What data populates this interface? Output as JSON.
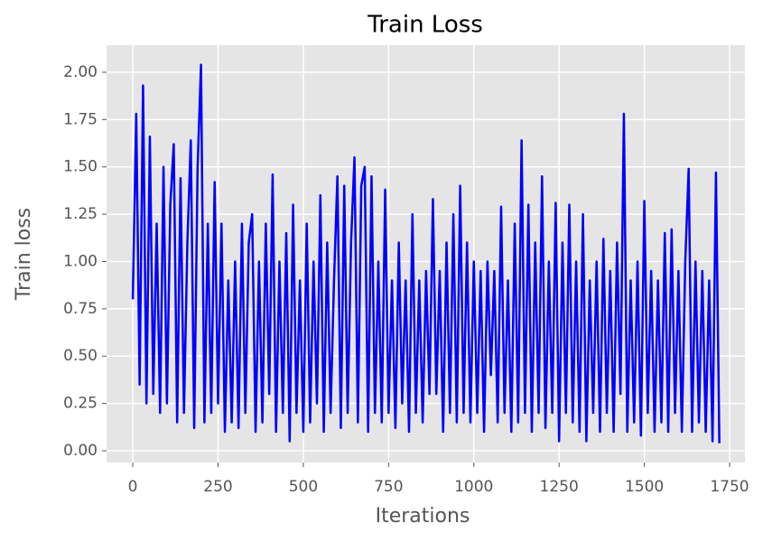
{
  "chart_data": {
    "type": "line",
    "title": "Train Loss",
    "x_label": "Iterations",
    "y_label": "Train loss",
    "color": "#0000ff",
    "grid": true,
    "xlim": [
      -77,
      1795
    ],
    "ylim": [
      -0.062,
      2.143
    ],
    "xticks": [
      0,
      250,
      500,
      750,
      1000,
      1250,
      1500,
      1750
    ],
    "yticks": [
      {
        "value": 0,
        "label": "0.00"
      },
      {
        "value": 0.25,
        "label": "0.25"
      },
      {
        "value": 0.5,
        "label": "0.50"
      },
      {
        "value": 0.75,
        "label": "0.75"
      },
      {
        "value": 1,
        "label": "1.00"
      },
      {
        "value": 1.25,
        "label": "1.25"
      },
      {
        "value": 1.5,
        "label": "1.50"
      },
      {
        "value": 1.75,
        "label": "1.75"
      },
      {
        "value": 2,
        "label": "2.00"
      }
    ],
    "x": [
      0,
      10,
      20,
      30,
      40,
      50,
      60,
      70,
      80,
      90,
      100,
      110,
      120,
      130,
      140,
      150,
      160,
      170,
      180,
      190,
      200,
      210,
      220,
      230,
      240,
      250,
      260,
      270,
      280,
      290,
      300,
      310,
      320,
      330,
      340,
      350,
      360,
      370,
      380,
      390,
      400,
      410,
      420,
      430,
      440,
      450,
      460,
      470,
      480,
      490,
      500,
      510,
      520,
      530,
      540,
      550,
      560,
      570,
      580,
      590,
      600,
      610,
      620,
      630,
      640,
      650,
      660,
      670,
      680,
      690,
      700,
      710,
      720,
      730,
      740,
      750,
      760,
      770,
      780,
      790,
      800,
      810,
      820,
      830,
      840,
      850,
      860,
      870,
      880,
      890,
      900,
      910,
      920,
      930,
      940,
      950,
      960,
      970,
      980,
      990,
      1000,
      1010,
      1020,
      1030,
      1040,
      1050,
      1060,
      1070,
      1080,
      1090,
      1100,
      1110,
      1120,
      1130,
      1140,
      1150,
      1160,
      1170,
      1180,
      1190,
      1200,
      1210,
      1220,
      1230,
      1240,
      1250,
      1260,
      1270,
      1280,
      1290,
      1300,
      1310,
      1320,
      1330,
      1340,
      1350,
      1360,
      1370,
      1380,
      1390,
      1400,
      1410,
      1420,
      1430,
      1440,
      1450,
      1460,
      1470,
      1480,
      1490,
      1500,
      1510,
      1520,
      1530,
      1540,
      1550,
      1560,
      1570,
      1580,
      1590,
      1600,
      1610,
      1620,
      1630,
      1640,
      1650,
      1660,
      1670,
      1680,
      1690,
      1700,
      1710,
      1720
    ],
    "values": [
      0.8,
      1.78,
      0.35,
      1.93,
      0.25,
      1.66,
      0.3,
      1.2,
      0.2,
      1.5,
      0.25,
      1.3,
      1.62,
      0.15,
      1.44,
      0.2,
      1.1,
      1.64,
      0.12,
      1.5,
      2.04,
      0.15,
      1.2,
      0.2,
      1.42,
      0.25,
      1.2,
      0.1,
      0.9,
      0.15,
      1.0,
      0.12,
      1.2,
      0.2,
      1.1,
      1.25,
      0.1,
      1.0,
      0.15,
      1.2,
      0.3,
      1.46,
      0.1,
      1.0,
      0.2,
      1.15,
      0.05,
      1.3,
      0.2,
      0.9,
      0.1,
      1.2,
      0.15,
      1.0,
      0.25,
      1.35,
      0.1,
      1.1,
      0.2,
      0.9,
      1.45,
      0.12,
      1.4,
      0.2,
      1.1,
      1.55,
      0.15,
      1.4,
      1.5,
      0.1,
      1.45,
      0.2,
      1.0,
      0.15,
      1.38,
      0.2,
      0.9,
      0.12,
      1.1,
      0.25,
      0.9,
      0.1,
      1.25,
      0.2,
      0.9,
      0.15,
      0.95,
      0.3,
      1.33,
      0.3,
      0.95,
      0.1,
      1.1,
      0.2,
      1.25,
      0.15,
      1.4,
      0.2,
      1.1,
      0.15,
      1.0,
      0.2,
      0.95,
      0.1,
      1.0,
      0.4,
      0.95,
      0.15,
      1.29,
      0.2,
      0.9,
      0.1,
      1.2,
      0.15,
      1.64,
      0.2,
      1.3,
      0.1,
      1.1,
      0.2,
      1.45,
      0.12,
      1.0,
      0.2,
      1.31,
      0.05,
      1.1,
      0.2,
      1.3,
      0.15,
      1.0,
      0.1,
      1.25,
      0.05,
      0.9,
      0.2,
      1.0,
      0.1,
      1.12,
      0.2,
      0.95,
      0.1,
      1.1,
      0.3,
      1.78,
      0.1,
      0.9,
      0.15,
      1.0,
      0.08,
      1.32,
      0.2,
      0.95,
      0.1,
      0.9,
      0.15,
      1.15,
      0.1,
      1.17,
      0.2,
      0.95,
      0.1,
      1.0,
      1.49,
      0.1,
      1.0,
      0.15,
      0.95,
      0.1,
      0.9,
      0.05,
      1.47,
      0.04
    ]
  }
}
